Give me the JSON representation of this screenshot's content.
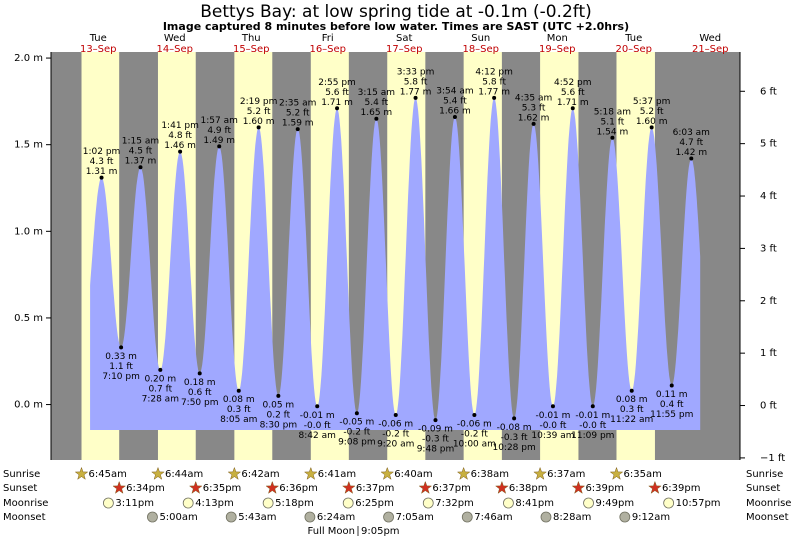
{
  "chart_data": {
    "type": "tide",
    "title": "Bettys Bay: at low  spring tide at -0.1m (-0.2ft)",
    "subtitle": "Image captured 8 minutes before low water. Times are SAST (UTC +2.0hrs)",
    "days": [
      "Tue",
      "Wed",
      "Thu",
      "Fri",
      "Sat",
      "Sun",
      "Mon",
      "Tue",
      "Wed"
    ],
    "dates": [
      "13–Sep",
      "14–Sep",
      "15–Sep",
      "16–Sep",
      "17–Sep",
      "18–Sep",
      "19–Sep",
      "20–Sep",
      "21–Sep"
    ],
    "extrema": {
      "times": [
        "1:02 pm",
        "7:10 pm",
        "1:15 am",
        "7:28 am",
        "1:41 pm",
        "7:50 pm",
        "1:57 am",
        "8:05 am",
        "2:19 pm",
        "8:30 pm",
        "2:35 am",
        "8:42 am",
        "2:55 pm",
        "9:08 pm",
        "3:15 am",
        "9:20 am",
        "3:33 pm",
        "9:48 pm",
        "3:54 am",
        "10:00 am",
        "4:12 pm",
        "10:28 pm",
        "4:35 am",
        "10:39 am",
        "4:52 pm",
        "11:09 pm",
        "5:18 am",
        "11:22 am",
        "5:37 pm",
        "11:55 pm",
        "6:03 am"
      ],
      "values": [
        1.31,
        0.33,
        1.37,
        0.2,
        1.46,
        0.18,
        1.49,
        0.08,
        1.6,
        0.05,
        1.59,
        -0.01,
        1.71,
        -0.05,
        1.65,
        -0.06,
        1.77,
        -0.09,
        1.66,
        -0.06,
        1.77,
        -0.08,
        1.62,
        -0.01,
        1.71,
        -0.01,
        1.54,
        0.08,
        1.6,
        0.11,
        1.42
      ],
      "value_labels": [
        "1.31 m",
        "0.33 m",
        "1.37 m",
        "0.20 m",
        "1.46 m",
        "0.18 m",
        "1.49 m",
        "0.08 m",
        "1.60 m",
        "0.05 m",
        "1.59 m",
        "-0.01 m",
        "1.71 m",
        "-0.05 m",
        "1.65 m",
        "-0.06 m",
        "1.77 m",
        "-0.09 m",
        "1.66 m",
        "-0.06 m",
        "1.77 m",
        "-0.08 m",
        "1.62 m",
        "-0.01 m",
        "1.71 m",
        "-0.01 m",
        "1.54 m",
        "0.08 m",
        "1.60 m",
        "0.11 m",
        "1.42 m"
      ],
      "ft_labels": [
        "4.3 ft",
        "1.1 ft",
        "4.5 ft",
        "0.7 ft",
        "4.8 ft",
        "0.6 ft",
        "4.9 ft",
        "0.3 ft",
        "5.2 ft",
        "0.2 ft",
        "5.2 ft",
        "-0.0 ft",
        "5.6 ft",
        "-0.2 ft",
        "5.4 ft",
        "-0.2 ft",
        "5.8 ft",
        "-0.3 ft",
        "5.4 ft",
        "-0.2 ft",
        "5.8 ft",
        "-0.3 ft",
        "5.3 ft",
        "-0.0 ft",
        "5.6 ft",
        "-0.0 ft",
        "5.1 ft",
        "0.3 ft",
        "5.2 ft",
        "0.4 ft",
        "4.7 ft"
      ]
    },
    "ylim": [
      -0.32,
      2.035
    ],
    "yticks": [
      {
        "value": 2.0,
        "label": "2.0 m"
      },
      {
        "value": 1.5,
        "label": "1.5 m"
      },
      {
        "value": 1.0,
        "label": "1.0 m"
      },
      {
        "value": 0.5,
        "label": "0.5 m"
      },
      {
        "value": 0.0,
        "label": "0.0 m"
      }
    ],
    "y2lim": [
      -1.04,
      6.75
    ],
    "y2ticks": [
      {
        "value": 6,
        "label": "6 ft"
      },
      {
        "value": 5,
        "label": "5 ft"
      },
      {
        "value": 4,
        "label": "4 ft"
      },
      {
        "value": 3,
        "label": "3 ft"
      },
      {
        "value": 2,
        "label": "2 ft"
      },
      {
        "value": 1,
        "label": "1 ft"
      },
      {
        "value": 0,
        "label": "0 ft"
      },
      {
        "value": -1,
        "label": "−1 ft"
      }
    ],
    "colors": {
      "day": "#ffffc8",
      "night": "#888888",
      "water": "#a0a8ff"
    },
    "almanac": {
      "row_labels": [
        "Sunrise",
        "Sunset",
        "Moonrise",
        "Moonset"
      ],
      "sunrise": [
        "6:45am",
        "6:44am",
        "6:42am",
        "6:41am",
        "6:40am",
        "6:38am",
        "6:37am",
        "6:35am",
        null
      ],
      "sunset": [
        "6:34pm",
        "6:35pm",
        "6:36pm",
        "6:37pm",
        "6:37pm",
        "6:38pm",
        "6:39pm",
        "6:39pm",
        null
      ],
      "moonrise": [
        "3:11pm",
        "4:13pm",
        "5:18pm",
        "6:25pm",
        "7:32pm",
        "8:41pm",
        "9:49pm",
        "10:57pm",
        null
      ],
      "moonset": [
        null,
        "5:00am",
        "5:43am",
        "6:24am",
        "7:05am",
        "7:46am",
        "8:28am",
        "9:12am",
        null
      ]
    },
    "full_moon": {
      "label": "Full Moon",
      "time": "9:05pm"
    }
  }
}
